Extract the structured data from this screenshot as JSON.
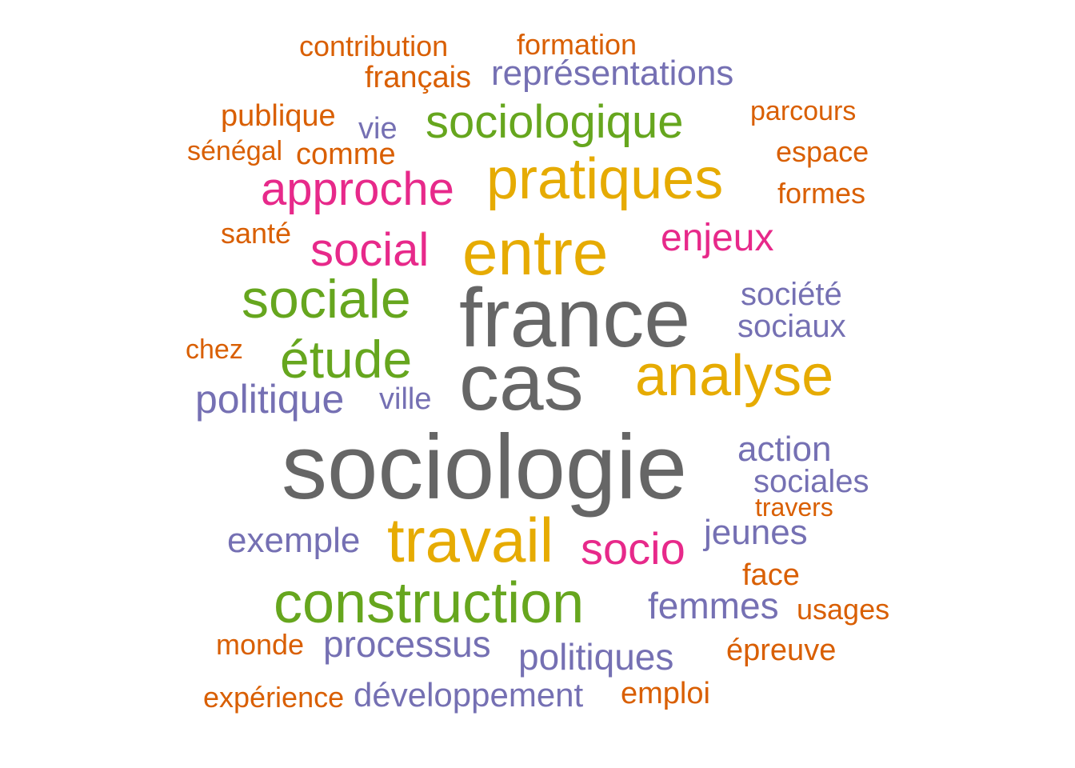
{
  "palette": {
    "gray": "#666666",
    "gold": "#E6AB02",
    "green": "#66A61E",
    "magenta": "#E7298A",
    "purple": "#7570B3",
    "orange": "#D95F02"
  },
  "words": [
    {
      "text": "sociologie",
      "color": "gray"
    },
    {
      "text": "france",
      "color": "gray"
    },
    {
      "text": "cas",
      "color": "gray"
    },
    {
      "text": "entre",
      "color": "gold"
    },
    {
      "text": "pratiques",
      "color": "gold"
    },
    {
      "text": "travail",
      "color": "gold"
    },
    {
      "text": "analyse",
      "color": "gold"
    },
    {
      "text": "construction",
      "color": "green"
    },
    {
      "text": "sociale",
      "color": "green"
    },
    {
      "text": "étude",
      "color": "green"
    },
    {
      "text": "sociologique",
      "color": "green"
    },
    {
      "text": "approche",
      "color": "magenta"
    },
    {
      "text": "social",
      "color": "magenta"
    },
    {
      "text": "socio",
      "color": "magenta"
    },
    {
      "text": "enjeux",
      "color": "magenta"
    },
    {
      "text": "politique",
      "color": "purple"
    },
    {
      "text": "processus",
      "color": "purple"
    },
    {
      "text": "femmes",
      "color": "purple"
    },
    {
      "text": "politiques",
      "color": "purple"
    },
    {
      "text": "représentations",
      "color": "purple"
    },
    {
      "text": "exemple",
      "color": "purple"
    },
    {
      "text": "action",
      "color": "purple"
    },
    {
      "text": "jeunes",
      "color": "purple"
    },
    {
      "text": "développement",
      "color": "purple"
    },
    {
      "text": "sociales",
      "color": "purple"
    },
    {
      "text": "sociaux",
      "color": "purple"
    },
    {
      "text": "société",
      "color": "purple"
    },
    {
      "text": "ville",
      "color": "purple"
    },
    {
      "text": "vie",
      "color": "purple"
    },
    {
      "text": "contribution",
      "color": "orange"
    },
    {
      "text": "formation",
      "color": "orange"
    },
    {
      "text": "français",
      "color": "orange"
    },
    {
      "text": "publique",
      "color": "orange"
    },
    {
      "text": "parcours",
      "color": "orange"
    },
    {
      "text": "sénégal",
      "color": "orange"
    },
    {
      "text": "comme",
      "color": "orange"
    },
    {
      "text": "espace",
      "color": "orange"
    },
    {
      "text": "formes",
      "color": "orange"
    },
    {
      "text": "santé",
      "color": "orange"
    },
    {
      "text": "chez",
      "color": "orange"
    },
    {
      "text": "travers",
      "color": "orange"
    },
    {
      "text": "face",
      "color": "orange"
    },
    {
      "text": "usages",
      "color": "orange"
    },
    {
      "text": "monde",
      "color": "orange"
    },
    {
      "text": "épreuve",
      "color": "orange"
    },
    {
      "text": "expérience",
      "color": "orange"
    },
    {
      "text": "emploi",
      "color": "orange"
    }
  ]
}
